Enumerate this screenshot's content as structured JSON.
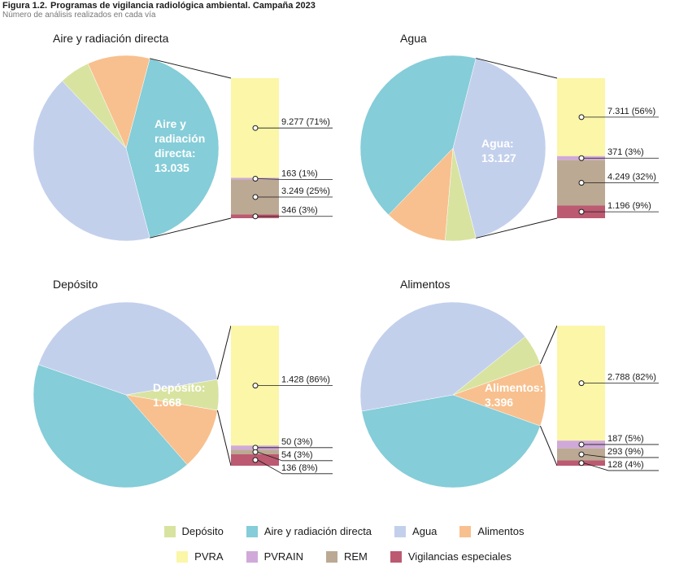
{
  "figure": {
    "number": "Figura 1.2.",
    "title": "Programas de vigilancia radiológica ambiental. Campaña 2023",
    "subtitle": "Número de análisis realizados en cada vía"
  },
  "colors": {
    "Depósito": "#d8e3a0",
    "Aire y radiación directa": "#85cdd8",
    "Agua": "#c3d0ec",
    "Alimentos": "#f8c08e",
    "PVRA": "#fbf6a8",
    "PVRAIN": "#d0a9d9",
    "REM": "#bca993",
    "Vigilancias especiales": "#bb5a71"
  },
  "legend": {
    "pie_items": [
      "Depósito",
      "Aire y radiación directa",
      "Agua",
      "Alimentos"
    ],
    "bar_items": [
      "PVRA",
      "PVRAIN",
      "REM",
      "Vigilancias especiales"
    ]
  },
  "chart_data": [
    {
      "type": "pie",
      "title": "Aire y radiación directa",
      "highlight": "Aire y radiación directa",
      "center_label_lines": [
        "Aire y",
        "radiación",
        "directa:",
        "13.035"
      ],
      "slices": [
        {
          "category": "Depósito",
          "value": 1668
        },
        {
          "category": "Aire y radiación directa",
          "value": 13035
        },
        {
          "category": "Agua",
          "value": 13127
        },
        {
          "category": "Alimentos",
          "value": 3396
        }
      ],
      "breakdown": [
        {
          "category": "PVRA",
          "value": 9277,
          "label": "9.277 (71%)"
        },
        {
          "category": "PVRAIN",
          "value": 163,
          "label": "163 (1%)"
        },
        {
          "category": "REM",
          "value": 3249,
          "label": "3.249 (25%)"
        },
        {
          "category": "Vigilancias especiales",
          "value": 346,
          "label": "346 (3%)"
        }
      ]
    },
    {
      "type": "pie",
      "title": "Agua",
      "highlight": "Agua",
      "center_label_lines": [
        "Agua:",
        "13.127"
      ],
      "slices": [
        {
          "category": "Depósito",
          "value": 1668
        },
        {
          "category": "Aire y radiación directa",
          "value": 13035
        },
        {
          "category": "Agua",
          "value": 13127
        },
        {
          "category": "Alimentos",
          "value": 3396
        }
      ],
      "breakdown": [
        {
          "category": "PVRA",
          "value": 7311,
          "label": "7.311 (56%)"
        },
        {
          "category": "PVRAIN",
          "value": 371,
          "label": "371 (3%)"
        },
        {
          "category": "REM",
          "value": 4249,
          "label": "4.249 (32%)"
        },
        {
          "category": "Vigilancias especiales",
          "value": 1196,
          "label": "1.196 (9%)"
        }
      ]
    },
    {
      "type": "pie",
      "title": "Depósito",
      "highlight": "Depósito",
      "center_label_lines": [
        "Depósito:",
        "1.668"
      ],
      "slices": [
        {
          "category": "Depósito",
          "value": 1668
        },
        {
          "category": "Aire y radiación directa",
          "value": 13035
        },
        {
          "category": "Agua",
          "value": 13127
        },
        {
          "category": "Alimentos",
          "value": 3396
        }
      ],
      "breakdown": [
        {
          "category": "PVRA",
          "value": 1428,
          "label": "1.428 (86%)"
        },
        {
          "category": "PVRAIN",
          "value": 50,
          "label": "50 (3%)"
        },
        {
          "category": "REM",
          "value": 54,
          "label": "54 (3%)"
        },
        {
          "category": "Vigilancias especiales",
          "value": 136,
          "label": "136 (8%)"
        }
      ]
    },
    {
      "type": "pie",
      "title": "Alimentos",
      "highlight": "Alimentos",
      "center_label_lines": [
        "Alimentos:",
        "3.396"
      ],
      "slices": [
        {
          "category": "Depósito",
          "value": 1668
        },
        {
          "category": "Aire y radiación directa",
          "value": 13035
        },
        {
          "category": "Agua",
          "value": 13127
        },
        {
          "category": "Alimentos",
          "value": 3396
        }
      ],
      "breakdown": [
        {
          "category": "PVRA",
          "value": 2788,
          "label": "2.788 (82%)"
        },
        {
          "category": "PVRAIN",
          "value": 187,
          "label": "187 (5%)"
        },
        {
          "category": "REM",
          "value": 293,
          "label": "293 (9%)"
        },
        {
          "category": "Vigilancias especiales",
          "value": 128,
          "label": "128 (4%)"
        }
      ]
    }
  ]
}
